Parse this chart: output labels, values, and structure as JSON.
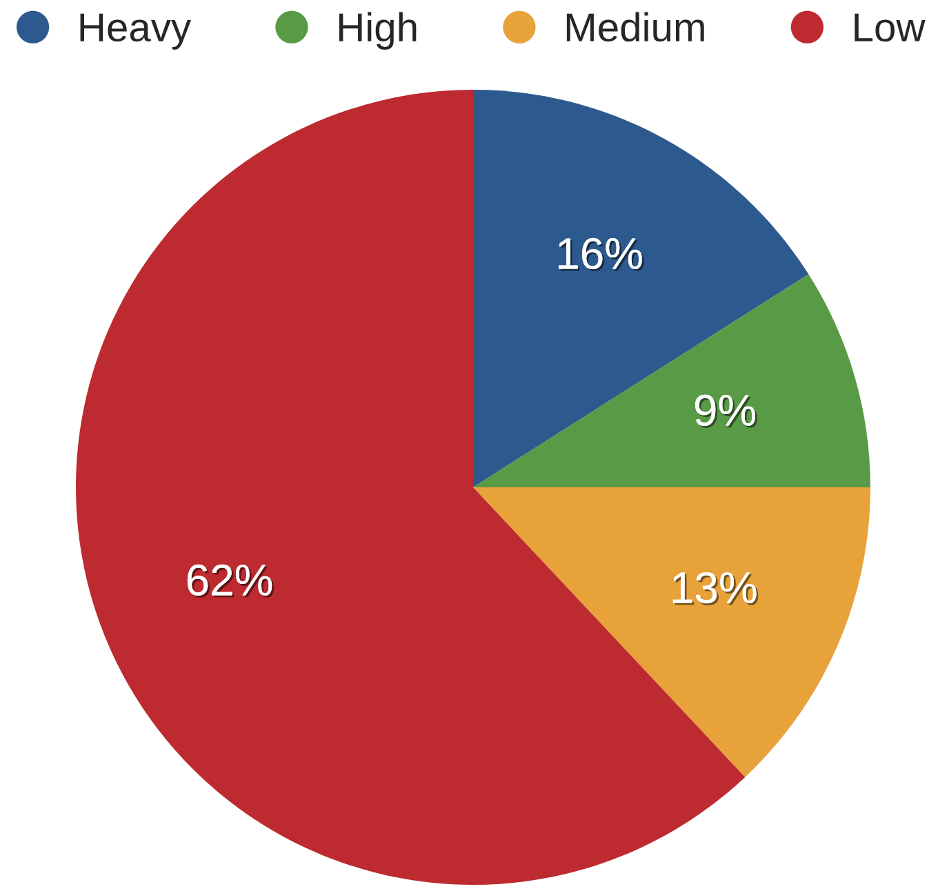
{
  "chart_data": {
    "type": "pie",
    "categories": [
      "Heavy",
      "High",
      "Medium",
      "Low"
    ],
    "values": [
      16,
      9,
      13,
      62
    ],
    "colors": [
      "#2d5a8e",
      "#589a46",
      "#e8a23a",
      "#bd2a2f"
    ],
    "value_labels": [
      "16%",
      "9%",
      "13%",
      "62%"
    ],
    "legend": "top"
  }
}
